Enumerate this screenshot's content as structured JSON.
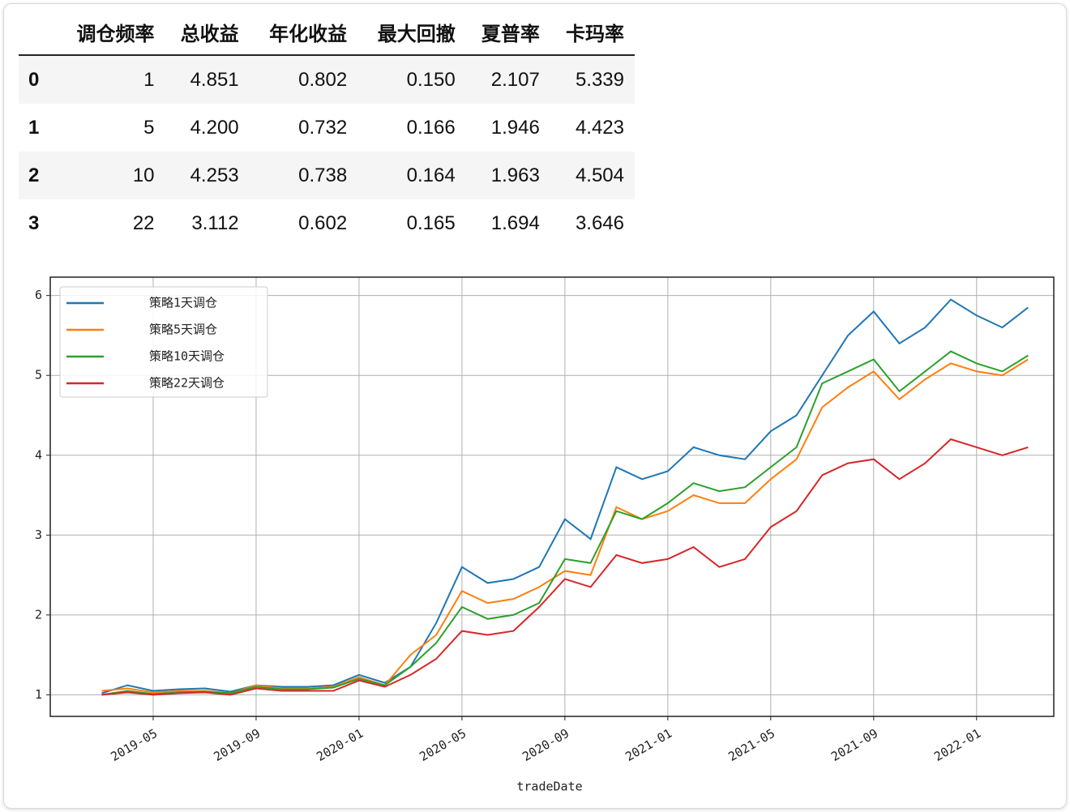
{
  "table": {
    "headers": [
      "调仓频率",
      "总收益",
      "年化收益",
      "最大回撤",
      "夏普率",
      "卡玛率"
    ],
    "rows": [
      [
        "0",
        "1",
        "4.851",
        "0.802",
        "0.150",
        "2.107",
        "5.339"
      ],
      [
        "1",
        "5",
        "4.200",
        "0.732",
        "0.166",
        "1.946",
        "4.423"
      ],
      [
        "2",
        "10",
        "4.253",
        "0.738",
        "0.164",
        "1.963",
        "4.504"
      ],
      [
        "3",
        "22",
        "3.112",
        "0.602",
        "0.165",
        "1.694",
        "3.646"
      ]
    ]
  },
  "chart_data": {
    "type": "line",
    "x_label": "tradeDate",
    "x": [
      "2019-03",
      "2019-04",
      "2019-05",
      "2019-06",
      "2019-07",
      "2019-08",
      "2019-09",
      "2019-10",
      "2019-11",
      "2019-12",
      "2020-01",
      "2020-02",
      "2020-03",
      "2020-04",
      "2020-05",
      "2020-06",
      "2020-07",
      "2020-08",
      "2020-09",
      "2020-10",
      "2020-11",
      "2020-12",
      "2021-01",
      "2021-02",
      "2021-03",
      "2021-04",
      "2021-05",
      "2021-06",
      "2021-07",
      "2021-08",
      "2021-09",
      "2021-10",
      "2021-11",
      "2021-12",
      "2022-01",
      "2022-02",
      "2022-03"
    ],
    "series": [
      {
        "name": "策略1天调仓",
        "color": "#1f77b4",
        "values": [
          1.02,
          1.12,
          1.05,
          1.07,
          1.08,
          1.04,
          1.12,
          1.1,
          1.1,
          1.12,
          1.25,
          1.15,
          1.35,
          1.9,
          2.6,
          2.4,
          2.45,
          2.6,
          3.2,
          2.95,
          3.85,
          3.7,
          3.8,
          4.1,
          4.0,
          3.95,
          4.3,
          4.5,
          5.0,
          5.5,
          5.8,
          5.4,
          5.6,
          5.95,
          5.75,
          5.6,
          5.85
        ]
      },
      {
        "name": "策略5天调仓",
        "color": "#ff7f0e",
        "values": [
          1.05,
          1.08,
          1.03,
          1.05,
          1.05,
          1.02,
          1.12,
          1.08,
          1.08,
          1.1,
          1.22,
          1.12,
          1.5,
          1.75,
          2.3,
          2.15,
          2.2,
          2.35,
          2.55,
          2.5,
          3.35,
          3.2,
          3.3,
          3.5,
          3.4,
          3.4,
          3.7,
          3.95,
          4.6,
          4.85,
          5.05,
          4.7,
          4.95,
          5.15,
          5.05,
          5.0,
          5.2
        ]
      },
      {
        "name": "策略10天调仓",
        "color": "#2ca02c",
        "values": [
          1.0,
          1.05,
          1.01,
          1.03,
          1.04,
          1.02,
          1.1,
          1.07,
          1.07,
          1.09,
          1.2,
          1.12,
          1.35,
          1.65,
          2.1,
          1.95,
          2.0,
          2.15,
          2.7,
          2.65,
          3.3,
          3.2,
          3.4,
          3.65,
          3.55,
          3.6,
          3.85,
          4.1,
          4.9,
          5.05,
          5.2,
          4.8,
          5.05,
          5.3,
          5.15,
          5.05,
          5.25
        ]
      },
      {
        "name": "策略22天调仓",
        "color": "#d62728",
        "values": [
          1.0,
          1.03,
          1.0,
          1.02,
          1.03,
          1.0,
          1.08,
          1.05,
          1.05,
          1.05,
          1.18,
          1.1,
          1.25,
          1.45,
          1.8,
          1.75,
          1.8,
          2.1,
          2.45,
          2.35,
          2.75,
          2.65,
          2.7,
          2.85,
          2.6,
          2.7,
          3.1,
          3.3,
          3.75,
          3.9,
          3.95,
          3.7,
          3.9,
          4.2,
          4.1,
          4.0,
          4.1
        ]
      }
    ],
    "xlim": [
      "2019-01",
      "2022-04"
    ],
    "xticks": [
      "2019-05",
      "2019-09",
      "2020-01",
      "2020-05",
      "2020-09",
      "2021-01",
      "2021-05",
      "2021-09",
      "2022-01"
    ],
    "ylim": [
      0.73,
      6.23
    ],
    "yticks": [
      1,
      2,
      3,
      4,
      5,
      6
    ],
    "grid": true,
    "legend": "upper-left"
  }
}
